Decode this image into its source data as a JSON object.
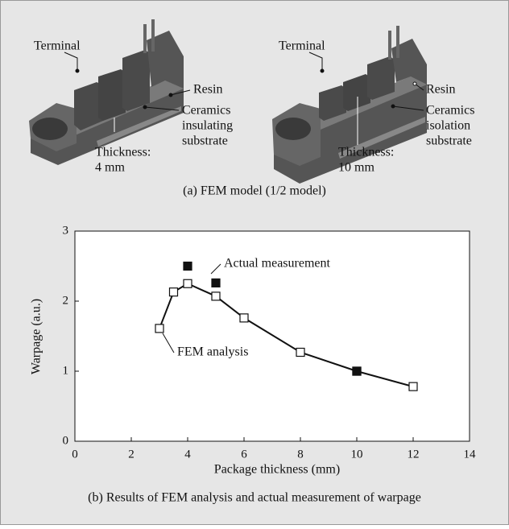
{
  "figure_a": {
    "left": {
      "terminal": "Terminal",
      "resin": "Resin",
      "substrate": [
        "Ceramics",
        "insulating",
        "substrate"
      ],
      "thickness": [
        "Thickness:",
        "4 mm"
      ]
    },
    "right": {
      "terminal": "Terminal",
      "resin": "Resin",
      "substrate": [
        "Ceramics",
        "isolation",
        "substrate"
      ],
      "thickness": [
        "Thickness:",
        "10 mm"
      ]
    },
    "caption": "(a) FEM model (1/2 model)"
  },
  "chart_data": {
    "type": "line",
    "x_label": "Package thickness (mm)",
    "y_label": "Warpage (a.u.)",
    "caption": "(b) Results of FEM analysis and actual measurement of warpage",
    "xlim": [
      0,
      14
    ],
    "xticks": [
      0,
      2,
      4,
      6,
      8,
      10,
      12,
      14
    ],
    "ylim": [
      0,
      3
    ],
    "yticks": [
      0,
      1,
      2,
      3
    ],
    "series": [
      {
        "name": "FEM analysis",
        "color": "#111111",
        "line": true,
        "marker_fill": "#ffffff",
        "x": [
          3,
          3.5,
          4,
          5,
          6,
          8,
          10,
          12
        ],
        "values": [
          1.61,
          2.13,
          2.25,
          2.07,
          1.76,
          1.27,
          1.0,
          0.78
        ]
      },
      {
        "name": "Actual measurement",
        "color": "#111111",
        "line": false,
        "marker_fill": "#111111",
        "x": [
          4,
          5,
          10
        ],
        "values": [
          2.5,
          2.26,
          1.0
        ]
      }
    ]
  }
}
